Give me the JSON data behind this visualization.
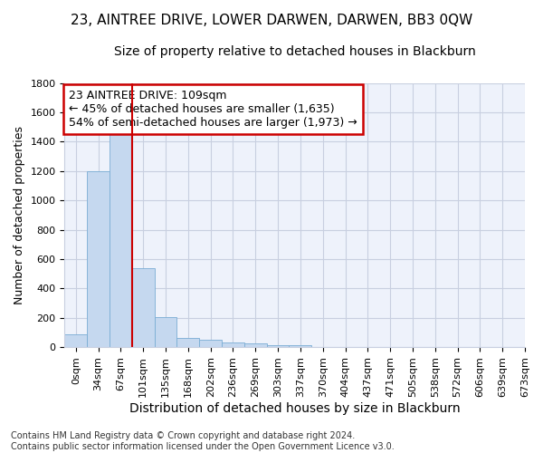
{
  "title": "23, AINTREE DRIVE, LOWER DARWEN, DARWEN, BB3 0QW",
  "subtitle": "Size of property relative to detached houses in Blackburn",
  "xlabel": "Distribution of detached houses by size in Blackburn",
  "ylabel": "Number of detached properties",
  "footer_line1": "Contains HM Land Registry data © Crown copyright and database right 2024.",
  "footer_line2": "Contains public sector information licensed under the Open Government Licence v3.0.",
  "bar_values": [
    90,
    1200,
    1460,
    540,
    205,
    65,
    48,
    35,
    28,
    15,
    12,
    0,
    0,
    0,
    0,
    0,
    0,
    0,
    0,
    0
  ],
  "bar_labels": [
    "0sqm",
    "34sqm",
    "67sqm",
    "101sqm",
    "135sqm",
    "168sqm",
    "202sqm",
    "236sqm",
    "269sqm",
    "303sqm",
    "337sqm",
    "370sqm",
    "404sqm",
    "437sqm",
    "471sqm",
    "505sqm",
    "538sqm",
    "572sqm",
    "606sqm",
    "639sqm",
    "673sqm"
  ],
  "bar_color": "#c5d8ef",
  "bar_edge_color": "#7aadd4",
  "background_color": "#eef2fb",
  "grid_color": "#c8cfe0",
  "vline_x": 2.5,
  "vline_color": "#cc0000",
  "annotation_text": "23 AINTREE DRIVE: 109sqm\n← 45% of detached houses are smaller (1,635)\n54% of semi-detached houses are larger (1,973) →",
  "annotation_box_color": "#ffffff",
  "annotation_box_edge": "#cc0000",
  "ylim": [
    0,
    1800
  ],
  "yticks": [
    0,
    200,
    400,
    600,
    800,
    1000,
    1200,
    1400,
    1600,
    1800
  ],
  "title_fontsize": 11,
  "subtitle_fontsize": 10,
  "xlabel_fontsize": 10,
  "ylabel_fontsize": 9,
  "tick_fontsize": 8,
  "annotation_fontsize": 9,
  "footer_fontsize": 7
}
